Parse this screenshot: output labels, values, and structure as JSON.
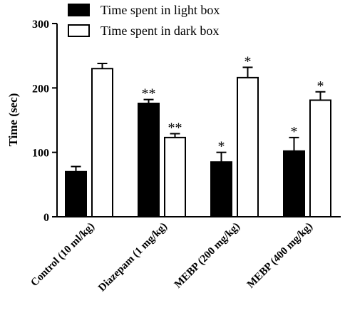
{
  "chart_data": {
    "type": "bar",
    "categories": [
      "Control (10 ml/kg)",
      "Diazepam (1 mg/kg)",
      "MEBP (200 mg/kg)",
      "MEBP (400 mg/kg)"
    ],
    "series": [
      {
        "name": "Time spent in light box",
        "color": "#000000",
        "fill": "solid",
        "values": [
          70,
          176,
          85,
          102
        ],
        "errors": [
          8,
          6,
          15,
          21
        ],
        "significance": [
          "",
          "**",
          "*",
          "*"
        ]
      },
      {
        "name": "Time spent in dark box",
        "color": "#ffffff",
        "fill": "hollow",
        "values": [
          230,
          123,
          216,
          181
        ],
        "errors": [
          8,
          6,
          16,
          13
        ],
        "significance": [
          "",
          "**",
          "*",
          "*"
        ]
      }
    ],
    "ylabel": "Time (sec)",
    "xlabel": "",
    "ylim": [
      0,
      300
    ],
    "yticks": [
      "0",
      "100",
      "200",
      "300"
    ],
    "legend_position": "top-left",
    "grid": false
  }
}
